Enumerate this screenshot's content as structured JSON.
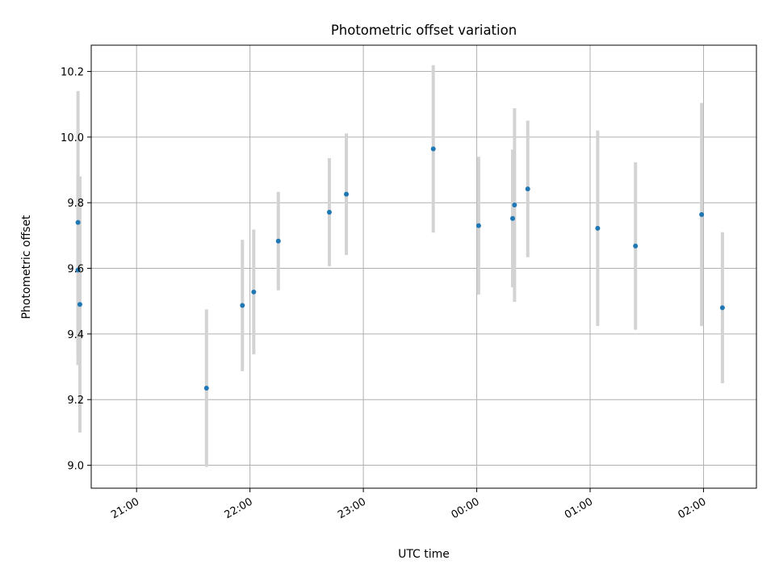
{
  "chart_data": {
    "type": "scatter",
    "title": "Photometric offset variation",
    "xlabel": "UTC time",
    "ylabel": "Photometric offset",
    "grid": true,
    "xlim": [
      "20:36",
      "02:28"
    ],
    "ylim": [
      8.93,
      10.28
    ],
    "x_ticks": [
      "21:00",
      "22:00",
      "23:00",
      "00:00",
      "01:00",
      "02:00"
    ],
    "y_ticks": [
      "9.0",
      "9.2",
      "9.4",
      "9.6",
      "9.8",
      "10.0",
      "10.2"
    ],
    "point_color": "#1f77b4",
    "errorbar_color": "#d3d3d3",
    "points": [
      {
        "x": "20:29",
        "y": 9.74,
        "err": 0.4
      },
      {
        "x": "20:29",
        "y": 9.595,
        "err": 0.29
      },
      {
        "x": "20:30",
        "y": 9.49,
        "err": 0.39
      },
      {
        "x": "21:37",
        "y": 9.235,
        "err": 0.24
      },
      {
        "x": "21:56",
        "y": 9.487,
        "err": 0.2
      },
      {
        "x": "22:02",
        "y": 9.528,
        "err": 0.19
      },
      {
        "x": "22:15",
        "y": 9.683,
        "err": 0.15
      },
      {
        "x": "22:42",
        "y": 9.771,
        "err": 0.165
      },
      {
        "x": "22:51",
        "y": 9.826,
        "err": 0.185
      },
      {
        "x": "23:37",
        "y": 9.964,
        "err": 0.255
      },
      {
        "x": "00:01",
        "y": 9.73,
        "err": 0.21
      },
      {
        "x": "00:19",
        "y": 9.752,
        "err": 0.21
      },
      {
        "x": "00:20",
        "y": 9.793,
        "err": 0.295
      },
      {
        "x": "00:27",
        "y": 9.842,
        "err": 0.208
      },
      {
        "x": "01:04",
        "y": 9.722,
        "err": 0.298
      },
      {
        "x": "01:24",
        "y": 9.668,
        "err": 0.255
      },
      {
        "x": "01:59",
        "y": 9.764,
        "err": 0.34
      },
      {
        "x": "02:10",
        "y": 9.48,
        "err": 0.23
      }
    ]
  }
}
